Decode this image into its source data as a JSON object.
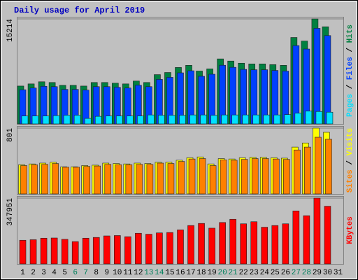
{
  "chart_data": [
    {
      "type": "bar",
      "title": "Daily usage for April 2019",
      "ylim": [
        0,
        15214
      ],
      "yticks": [
        15214
      ],
      "series": [
        {
          "name": "Hits",
          "color": "#008040",
          "values": [
            5486,
            5796,
            6106,
            6003,
            5589,
            5589,
            5486,
            6003,
            6003,
            5900,
            5796,
            6210,
            6003,
            7142,
            7452,
            8177,
            8487,
            7659,
            7970,
            9419,
            9108,
            8798,
            8694,
            8694,
            8591,
            8487,
            12524,
            12006,
            15214,
            14076,
            null
          ]
        },
        {
          "name": "Files",
          "color": "#0040ff",
          "values": [
            4950,
            5200,
            5450,
            5400,
            5000,
            5000,
            4900,
            5400,
            5400,
            5300,
            5200,
            5600,
            5400,
            6450,
            6750,
            7400,
            7700,
            6900,
            7200,
            8500,
            8200,
            7900,
            7850,
            7850,
            7750,
            7650,
            11350,
            10850,
            13850,
            12800,
            null
          ]
        },
        {
          "name": "Pages",
          "color": "#00e0ff",
          "values": [
            1150,
            1150,
            1150,
            1200,
            1250,
            1250,
            800,
            1100,
            1150,
            1150,
            1150,
            1150,
            1300,
            1250,
            1250,
            1250,
            1300,
            1300,
            1250,
            1300,
            1300,
            1300,
            1300,
            1300,
            1300,
            1350,
            1550,
            1850,
            1800,
            1700,
            null
          ]
        }
      ]
    },
    {
      "type": "bar",
      "ylim": [
        0,
        801
      ],
      "yticks": [
        801
      ],
      "series": [
        {
          "name": "Visits",
          "color": "#ffff00",
          "values": [
            355,
            365,
            375,
            385,
            330,
            330,
            345,
            350,
            375,
            370,
            365,
            375,
            370,
            385,
            385,
            410,
            440,
            450,
            365,
            430,
            425,
            440,
            445,
            445,
            440,
            435,
            570,
            620,
            801,
            750,
            null
          ]
        },
        {
          "name": "Sites",
          "color": "#ff8000",
          "values": [
            345,
            355,
            360,
            370,
            325,
            325,
            335,
            340,
            360,
            355,
            355,
            360,
            360,
            375,
            370,
            395,
            425,
            430,
            345,
            415,
            410,
            420,
            430,
            430,
            425,
            420,
            535,
            570,
            690,
            665,
            null
          ]
        }
      ]
    },
    {
      "type": "bar",
      "ylim": [
        0,
        347951
      ],
      "yticks": [
        347951
      ],
      "categories": [
        "1",
        "2",
        "3",
        "4",
        "5",
        "6",
        "7",
        "8",
        "9",
        "10",
        "11",
        "12",
        "13",
        "14",
        "15",
        "16",
        "17",
        "18",
        "19",
        "20",
        "21",
        "22",
        "23",
        "24",
        "25",
        "26",
        "27",
        "28",
        "29",
        "30",
        "31"
      ],
      "category_colors": [
        "#000000",
        "#000000",
        "#000000",
        "#000000",
        "#000000",
        "#00805c",
        "#00805c",
        "#000000",
        "#000000",
        "#000000",
        "#000000",
        "#000000",
        "#00805c",
        "#00805c",
        "#000000",
        "#000000",
        "#000000",
        "#000000",
        "#000000",
        "#00805c",
        "#00805c",
        "#000000",
        "#000000",
        "#000000",
        "#000000",
        "#000000",
        "#00805c",
        "#00805c",
        "#000000",
        "#000000",
        "#000000"
      ],
      "series": [
        {
          "name": "KBytes",
          "color": "#ff0000",
          "values": [
            125000,
            128000,
            136000,
            137000,
            130000,
            118000,
            136000,
            140000,
            148000,
            150000,
            144000,
            162000,
            157000,
            164000,
            166000,
            180000,
            203000,
            214000,
            189000,
            219000,
            236000,
            212000,
            223000,
            194000,
            203000,
            212000,
            280000,
            255000,
            347951,
            305000,
            null
          ]
        }
      ]
    }
  ]
}
